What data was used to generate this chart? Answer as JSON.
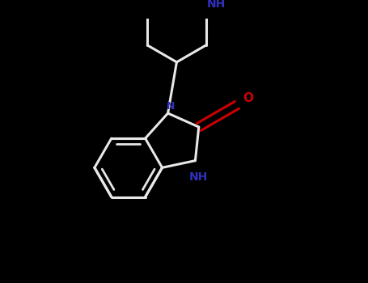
{
  "background_color": "#000000",
  "bond_color": "#e8e8e8",
  "N_color": "#3030bb",
  "O_color": "#cc0000",
  "line_width": 2.2,
  "figsize": [
    4.55,
    3.5
  ],
  "dpi": 100,
  "xlim": [
    -2.5,
    2.5
  ],
  "ylim": [
    -2.5,
    2.0
  ]
}
